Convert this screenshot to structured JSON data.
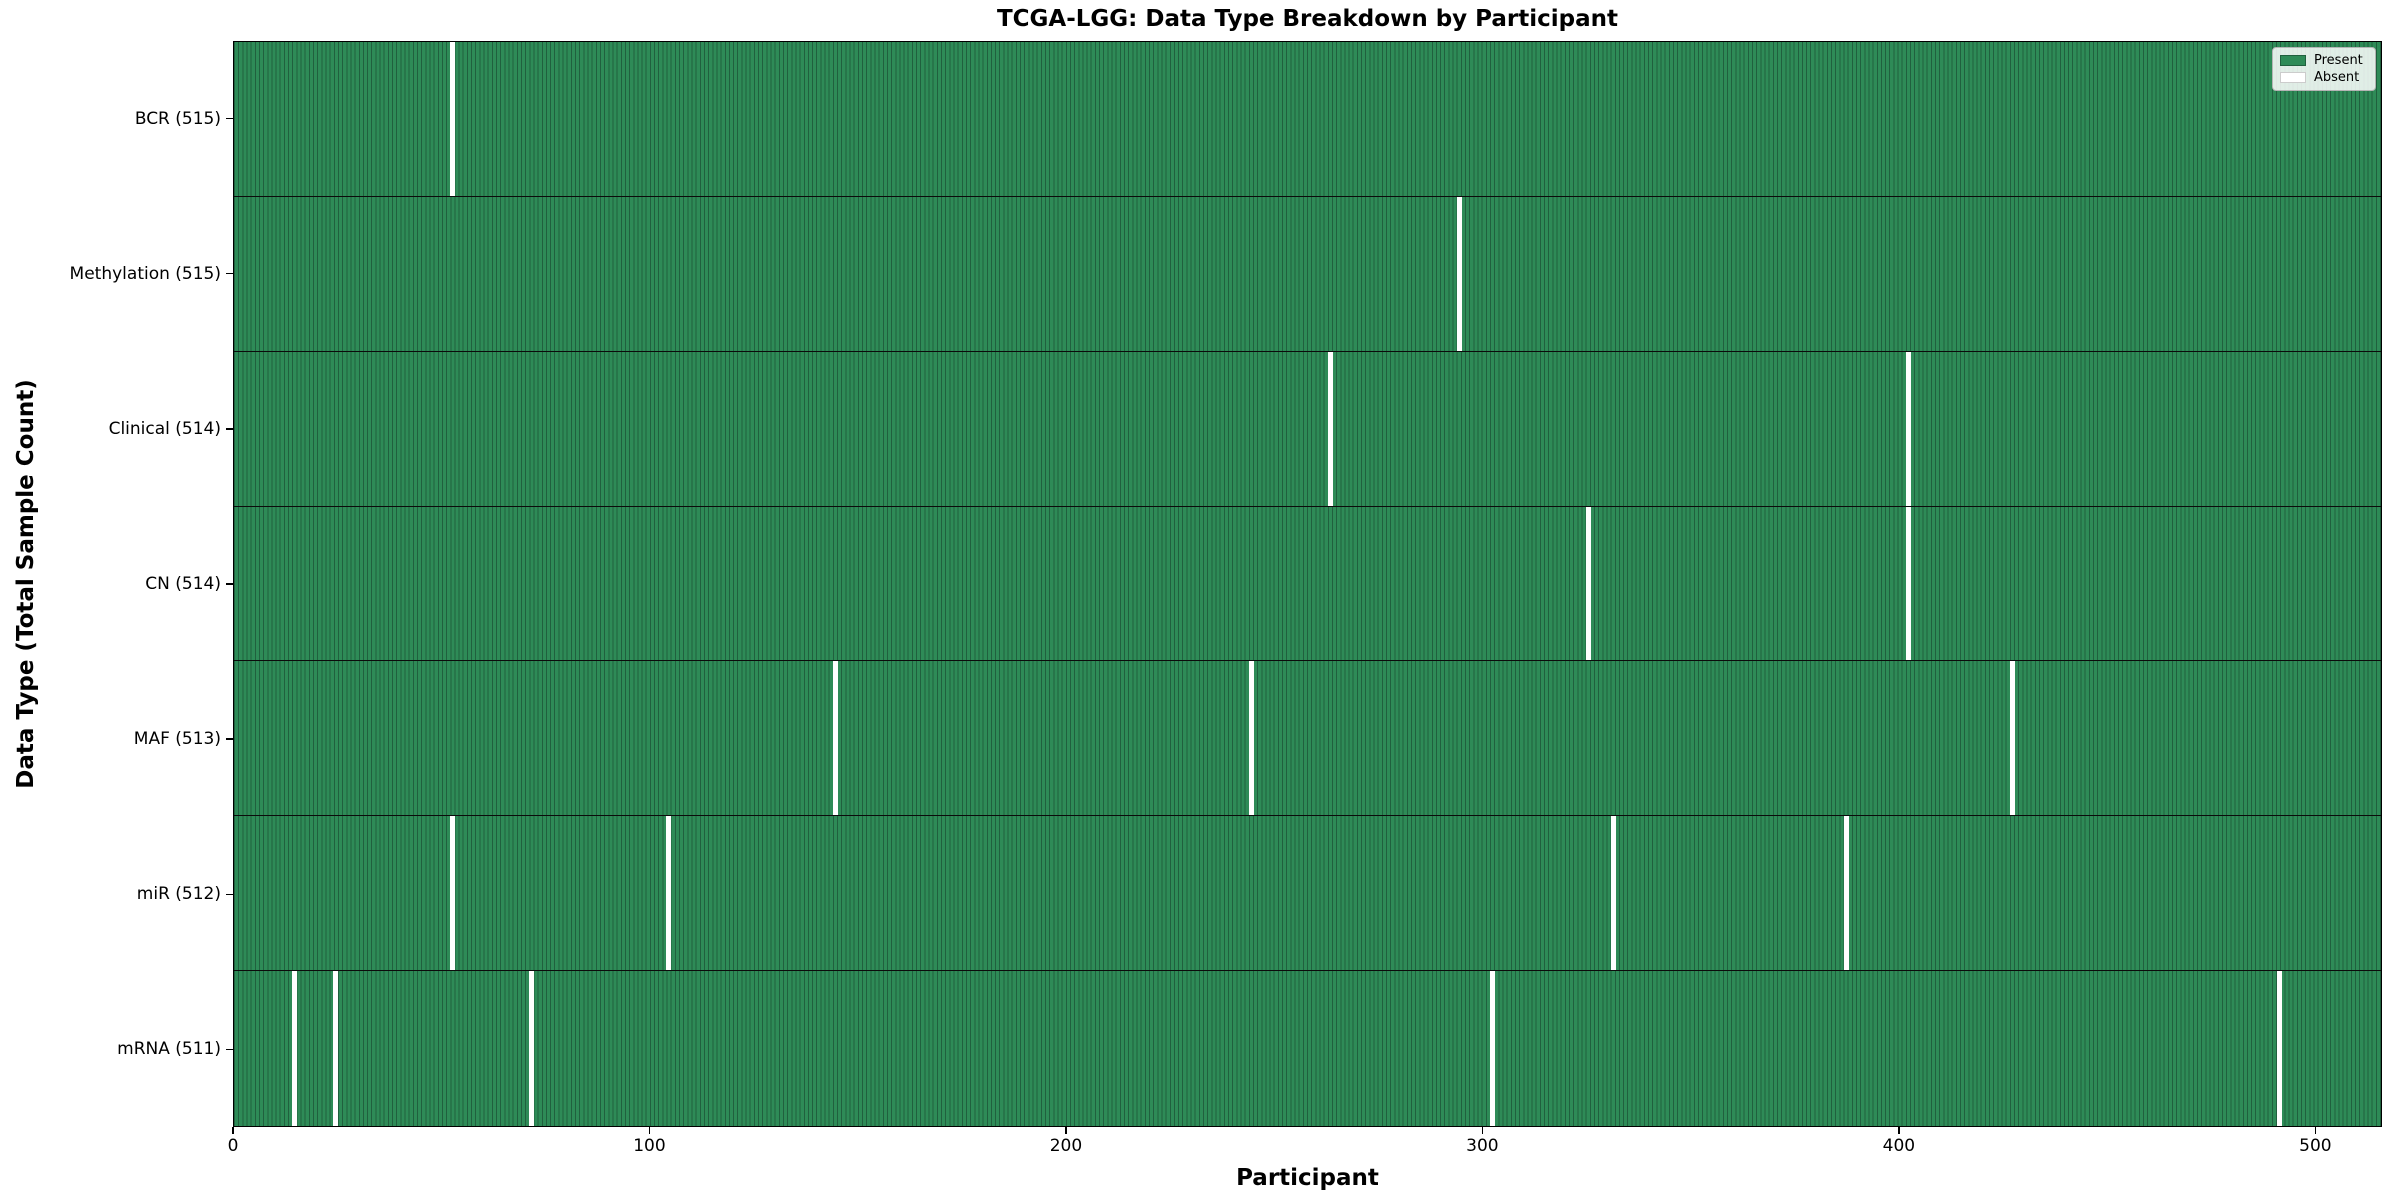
{
  "colors": {
    "present": "#2e8b57",
    "absent": "#ffffff",
    "bar_edge": "#20603e",
    "axis": "#000000",
    "legend_border": "#b4b4b4"
  },
  "chart_data": {
    "type": "heatmap",
    "title": "TCGA-LGG: Data Type Breakdown by Participant",
    "xlabel": "Participant",
    "ylabel": "Data Type (Total Sample Count)",
    "legend": {
      "present": "Present",
      "absent": "Absent"
    },
    "legend_position": "upper right",
    "grid": false,
    "x_range": [
      0,
      516
    ],
    "total_participants": 516,
    "x_ticks": [
      0,
      100,
      200,
      300,
      400,
      500
    ],
    "rows": [
      {
        "data_type": "bcr",
        "label": "BCR (515)",
        "present_count": 515,
        "absent_participants": [
          52
        ]
      },
      {
        "data_type": "methylation",
        "label": "Methylation (515)",
        "present_count": 515,
        "absent_participants": [
          294
        ]
      },
      {
        "data_type": "clinical",
        "label": "Clinical (514)",
        "present_count": 514,
        "absent_participants": [
          263,
          402
        ]
      },
      {
        "data_type": "cn",
        "label": "CN (514)",
        "present_count": 514,
        "absent_participants": [
          325,
          402
        ]
      },
      {
        "data_type": "maf",
        "label": "MAF (513)",
        "present_count": 513,
        "absent_participants": [
          144,
          244,
          427
        ]
      },
      {
        "data_type": "mir",
        "label": "miR (512)",
        "present_count": 512,
        "absent_participants": [
          52,
          104,
          331,
          387
        ]
      },
      {
        "data_type": "mrna",
        "label": "mRNA (511)",
        "present_count": 511,
        "absent_participants": [
          14,
          24,
          71,
          302,
          491
        ]
      }
    ]
  }
}
